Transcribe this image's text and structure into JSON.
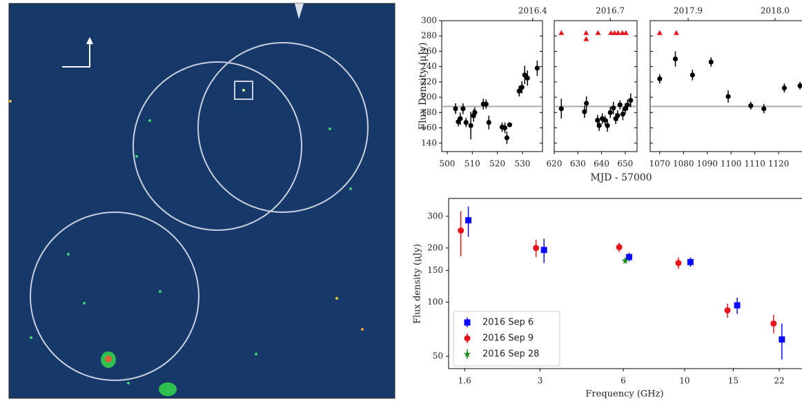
{
  "chart_data": [
    {
      "type": "lightcurve",
      "ylabel": "Flux Density (μJy)",
      "xlabel": "MJD - 57000",
      "ylim": [
        129,
        300
      ],
      "yticks": [
        140,
        160,
        180,
        200,
        220,
        240,
        260,
        280,
        300
      ],
      "reference_line": 188,
      "detection_color": "#000000",
      "limit_color": "#e8141c",
      "panels": [
        {
          "xlim": [
            497.8,
            538
          ],
          "xticks": [
            500,
            510,
            520,
            530
          ],
          "x2ticks": [
            2016.4
          ],
          "x": [
            503.3,
            504.4,
            505.2,
            506.3,
            507.5,
            509.4,
            510.5,
            511,
            514.4,
            515.5,
            516.6,
            521.9,
            523,
            523.8,
            524.9,
            528.7,
            529.8,
            530.9,
            532,
            535.9
          ],
          "values": [
            185,
            168,
            172,
            185,
            167,
            163,
            176,
            180,
            191,
            191,
            167,
            161,
            160,
            147,
            164,
            208,
            213,
            229,
            225,
            238
          ],
          "errors": [
            7,
            6,
            8,
            7,
            6,
            18,
            8,
            7,
            7,
            6,
            9,
            6,
            7,
            8,
            3,
            7,
            8,
            12,
            10,
            10
          ],
          "limit_x": [],
          "limit_values": []
        },
        {
          "xlim": [
            620,
            655
          ],
          "xticks": [
            620,
            630,
            640,
            650
          ],
          "x2ticks": [
            2016.7
          ],
          "x": [
            623,
            632.8,
            633.6,
            638.3,
            639,
            640.3,
            641.5,
            642.5,
            643.7,
            645,
            646,
            646.8,
            647.8,
            649,
            650,
            651,
            652.3
          ],
          "values": [
            185,
            181,
            192,
            170,
            163,
            172,
            170,
            163,
            180,
            186,
            172,
            176,
            190,
            178,
            185,
            190,
            196
          ],
          "errors": [
            13,
            8,
            9,
            7,
            7,
            7,
            6,
            8,
            7,
            8,
            7,
            7,
            6,
            8,
            7,
            7,
            9
          ],
          "limit_x": [
            623,
            633.5,
            633.5,
            638.5,
            644,
            645.5,
            647,
            648.8,
            650.3
          ],
          "limit_values": [
            284,
            284,
            276,
            284,
            284,
            284,
            284,
            284,
            284
          ]
        },
        {
          "xlim": [
            1066,
            1131
          ],
          "xticks": [
            1070,
            1080,
            1090,
            1100,
            1110,
            1120
          ],
          "x2ticks": [
            2017.9,
            {
              "value": 2018,
              "label": "2018.0"
            }
          ],
          "x": [
            1070,
            1076.6,
            1083.8,
            1091.6,
            1098.8,
            1108.3,
            1113.8,
            1122.4,
            1129
          ],
          "values": [
            224,
            250,
            229,
            246,
            201,
            189,
            185,
            212,
            215
          ],
          "errors": [
            6,
            10,
            7,
            6,
            8,
            5,
            6,
            6,
            5
          ],
          "limit_x": [
            1070,
            1077
          ],
          "limit_values": [
            284,
            284
          ]
        }
      ]
    },
    {
      "type": "spectrum",
      "xlabel": "Frequency (GHz)",
      "ylabel": "Flux density (μJy)",
      "xscale": "log",
      "yscale": "log",
      "xlim": [
        1.4,
        26.3
      ],
      "ylim": [
        42.7,
        377
      ],
      "xticks": [
        1.6,
        3,
        6,
        10,
        15,
        22
      ],
      "yticks": [
        50,
        100,
        150,
        200,
        300
      ],
      "legend": "lower left",
      "series": [
        {
          "name": "2016 Sep 6",
          "color": "#0a0aff",
          "marker": "square",
          "x": [
            1.65,
            3.1,
            6.3,
            10.5,
            15.5,
            22.5
          ],
          "values": [
            285,
            195,
            178,
            167,
            96,
            62
          ],
          "errors": [
            55,
            30,
            10,
            10,
            10,
            14
          ]
        },
        {
          "name": "2016 Sep 9",
          "color": "#e8141c",
          "marker": "circle",
          "x": [
            1.55,
            2.9,
            5.8,
            9.5,
            14.3,
            21
          ],
          "values": [
            250,
            200,
            202,
            165,
            90,
            76
          ],
          "errors": [
            70,
            22,
            12,
            12,
            8,
            9
          ]
        },
        {
          "name": "2016 Sep 28",
          "color": "#1a8a1a",
          "marker": "star",
          "x": [
            6.1
          ],
          "values": [
            170
          ],
          "errors": [
            6
          ]
        }
      ]
    }
  ]
}
